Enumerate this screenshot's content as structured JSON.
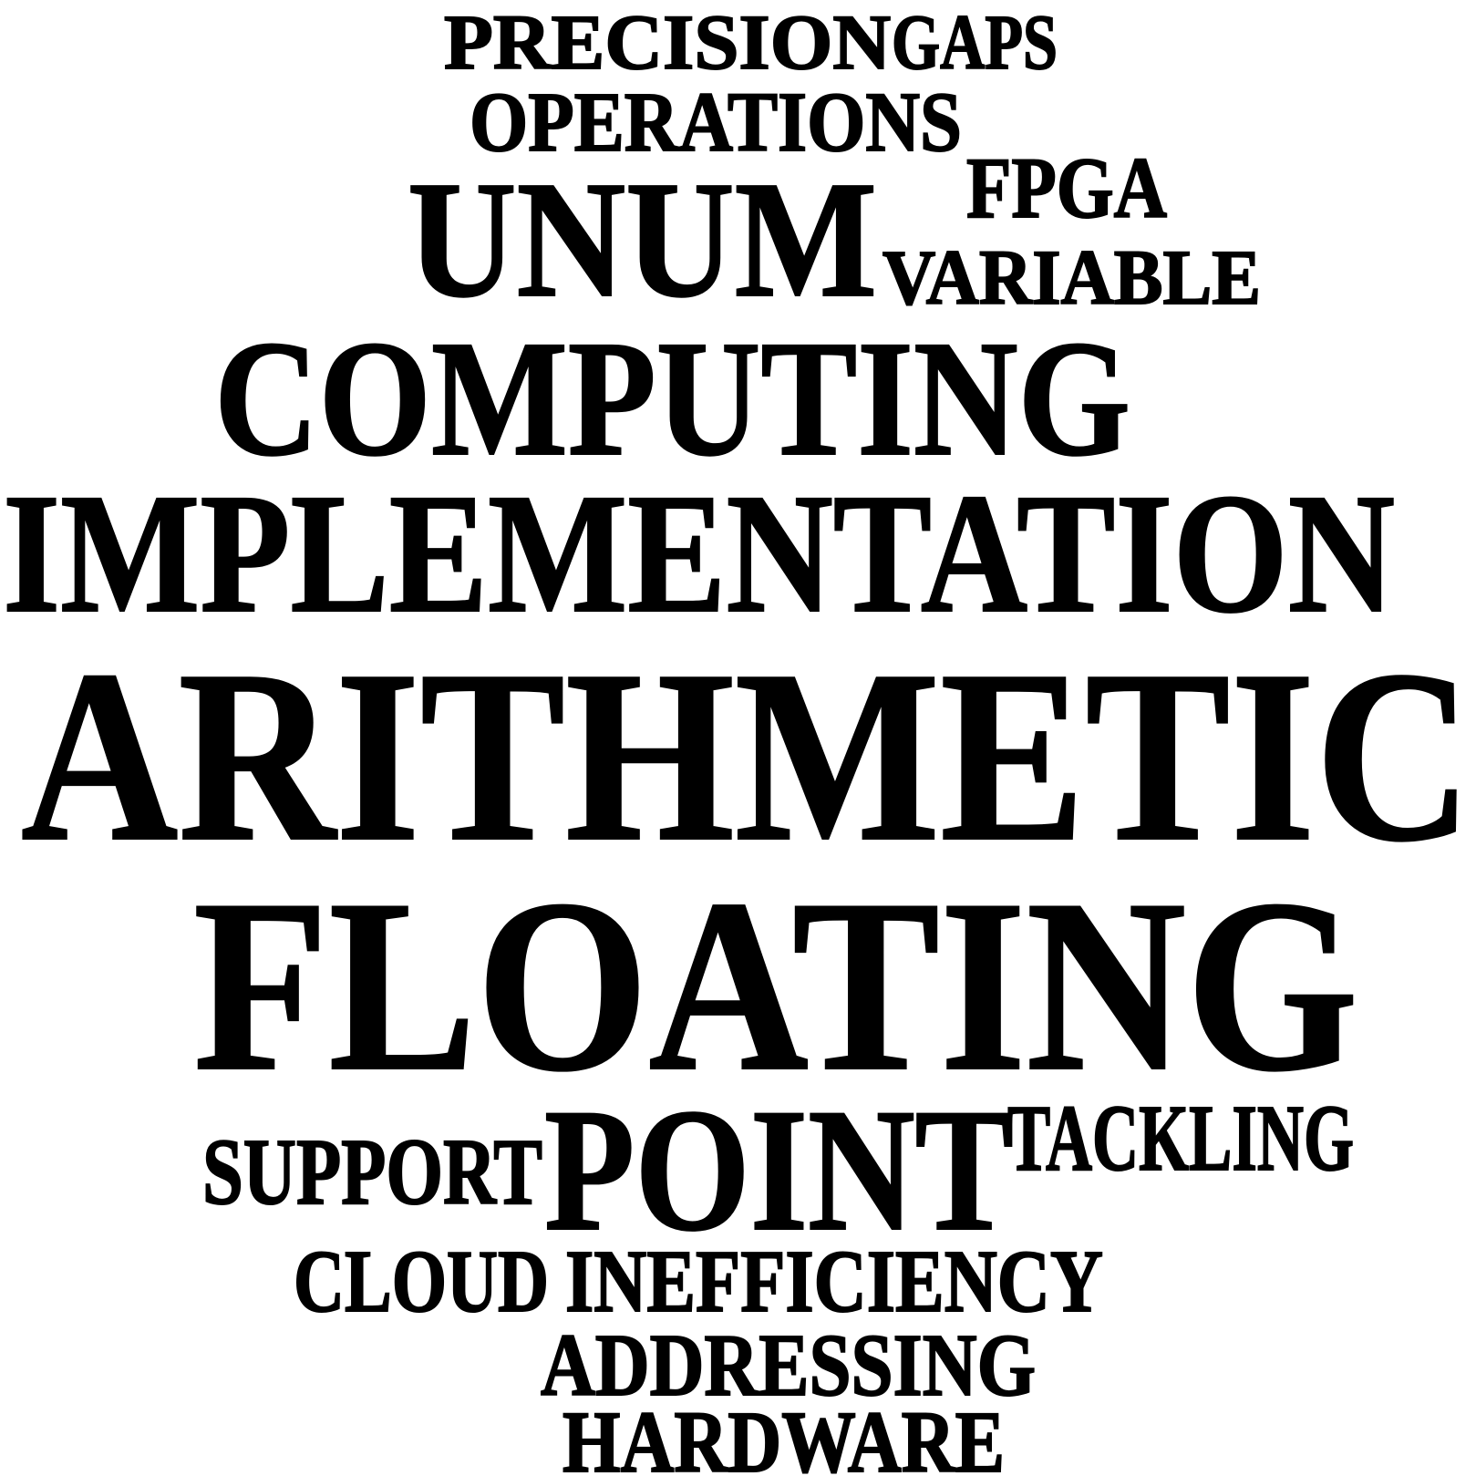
{
  "words": [
    {
      "key": "precision",
      "text": "PRECISION"
    },
    {
      "key": "gaps",
      "text": "GAPS"
    },
    {
      "key": "operations",
      "text": "OPERATIONS"
    },
    {
      "key": "fpga",
      "text": "FPGA"
    },
    {
      "key": "unum",
      "text": "UNUM"
    },
    {
      "key": "variable",
      "text": "VARIABLE"
    },
    {
      "key": "computing",
      "text": "COMPUTING"
    },
    {
      "key": "implementation",
      "text": "IMPLEMENTATION"
    },
    {
      "key": "arithmetic",
      "text": "ARITHMETIC"
    },
    {
      "key": "floating",
      "text": "FLOATING"
    },
    {
      "key": "support",
      "text": "SUPPORT"
    },
    {
      "key": "point",
      "text": "POINT"
    },
    {
      "key": "tackling",
      "text": "TACKLING"
    },
    {
      "key": "cloud",
      "text": "CLOUD"
    },
    {
      "key": "inefficiency",
      "text": "INEFFICIENCY"
    },
    {
      "key": "addressing",
      "text": "ADDRESSING"
    },
    {
      "key": "hardware",
      "text": "HARDWARE"
    }
  ],
  "colors": {
    "background": "#ffffff",
    "text": "#000000"
  }
}
